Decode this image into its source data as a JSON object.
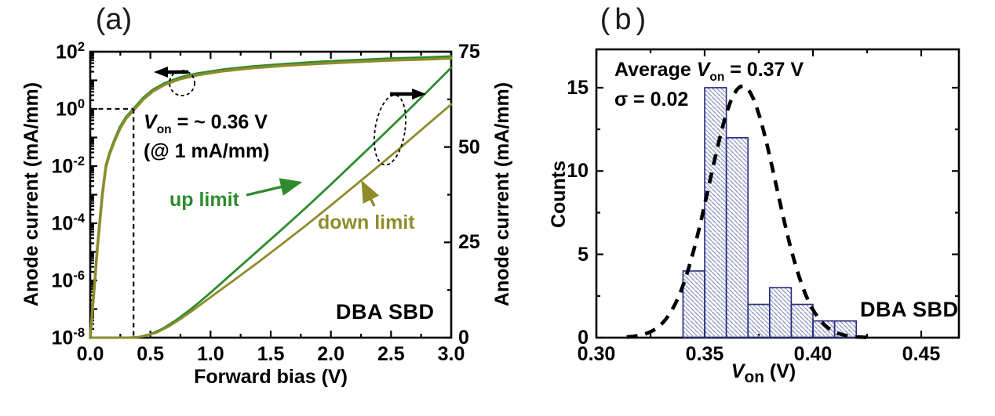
{
  "colors": {
    "green": "#2e8b2e",
    "olive": "#8f8c2b",
    "bar_edge": "#2a2a80",
    "bar_hatch": "#8890bf",
    "gauss": "#000000",
    "axis": "#000000"
  },
  "chart_data": [
    {
      "type": "line",
      "panel": "a",
      "title": "(a)",
      "xlabel": "Forward bias (V)",
      "ylabel_left": "Anode current (mA/mm)",
      "ylabel_right": "Anode current (mA/mm)",
      "x_range": [
        0.0,
        3.0
      ],
      "y_left_scale": "log",
      "y_left_range_log10": [
        -8,
        2
      ],
      "y_right_scale": "linear",
      "y_right_range": [
        0,
        75
      ],
      "x_ticks": [
        0.0,
        0.5,
        1.0,
        1.5,
        2.0,
        2.5,
        3.0
      ],
      "x_tick_labels": [
        "0.0",
        "0.5",
        "1.0",
        "1.5",
        "2.0",
        "2.5",
        "3.0"
      ],
      "x_minor_ticks": [
        0.25,
        0.75,
        1.25,
        1.75,
        2.25,
        2.75
      ],
      "y_left_ticks": [
        {
          "log10": 2,
          "base": "10",
          "exp": "2"
        },
        {
          "log10": 0,
          "base": "10",
          "exp": "0"
        },
        {
          "log10": -2,
          "base": "10",
          "exp": "-2"
        },
        {
          "log10": -4,
          "base": "10",
          "exp": "-4"
        },
        {
          "log10": -6,
          "base": "10",
          "exp": "-6"
        },
        {
          "log10": -8,
          "base": "10",
          "exp": "-8"
        }
      ],
      "y_left_unlabeled_decades": [
        1,
        -1,
        -3,
        -5,
        -7
      ],
      "y_right_ticks": [
        {
          "value": 75,
          "label": "75"
        },
        {
          "value": 50,
          "label": "50"
        },
        {
          "value": 25,
          "label": "25"
        },
        {
          "value": 0,
          "label": "0"
        }
      ],
      "y_right_minor_ticks": [
        12.5,
        37.5,
        62.5
      ],
      "series": [
        {
          "name": "up limit (log axis)",
          "color_key": "green",
          "axis": "log",
          "points_v_log10": [
            [
              0.0,
              -8
            ],
            [
              0.02,
              -6.9
            ],
            [
              0.04,
              -5.9
            ],
            [
              0.06,
              -4.8
            ],
            [
              0.08,
              -3.9
            ],
            [
              0.1,
              -3.0
            ],
            [
              0.13,
              -2.0
            ],
            [
              0.16,
              -1.55
            ],
            [
              0.2,
              -1.1
            ],
            [
              0.25,
              -0.62
            ],
            [
              0.3,
              -0.28
            ],
            [
              0.36,
              0.0
            ],
            [
              0.44,
              0.38
            ],
            [
              0.52,
              0.66
            ],
            [
              0.62,
              0.9
            ],
            [
              0.75,
              1.1
            ],
            [
              0.9,
              1.24
            ],
            [
              1.1,
              1.37
            ],
            [
              1.35,
              1.48
            ],
            [
              1.6,
              1.56
            ],
            [
              1.9,
              1.64
            ],
            [
              2.2,
              1.7
            ],
            [
              2.5,
              1.76
            ],
            [
              2.75,
              1.79
            ],
            [
              3.0,
              1.83
            ]
          ]
        },
        {
          "name": "down limit (log axis)",
          "color_key": "olive",
          "axis": "log",
          "points_v_log10": [
            [
              0.0,
              -8
            ],
            [
              0.02,
              -6.95
            ],
            [
              0.04,
              -5.95
            ],
            [
              0.06,
              -4.85
            ],
            [
              0.08,
              -3.95
            ],
            [
              0.1,
              -3.05
            ],
            [
              0.13,
              -2.05
            ],
            [
              0.16,
              -1.6
            ],
            [
              0.2,
              -1.15
            ],
            [
              0.25,
              -0.67
            ],
            [
              0.3,
              -0.33
            ],
            [
              0.36,
              -0.05
            ],
            [
              0.44,
              0.33
            ],
            [
              0.52,
              0.61
            ],
            [
              0.62,
              0.85
            ],
            [
              0.75,
              1.05
            ],
            [
              0.9,
              1.19
            ],
            [
              1.1,
              1.32
            ],
            [
              1.35,
              1.43
            ],
            [
              1.6,
              1.51
            ],
            [
              1.9,
              1.58
            ],
            [
              2.2,
              1.64
            ],
            [
              2.5,
              1.7
            ],
            [
              2.75,
              1.73
            ],
            [
              3.0,
              1.77
            ]
          ]
        },
        {
          "name": "up limit",
          "color_key": "green",
          "axis": "linear",
          "points_v_i": [
            [
              0.0,
              0
            ],
            [
              0.3,
              0
            ],
            [
              0.4,
              0.15
            ],
            [
              0.5,
              0.9
            ],
            [
              0.6,
              2.3
            ],
            [
              0.7,
              4.3
            ],
            [
              0.8,
              6.6
            ],
            [
              0.9,
              9.1
            ],
            [
              1.0,
              11.8
            ],
            [
              1.2,
              17.4
            ],
            [
              1.4,
              23.0
            ],
            [
              1.6,
              28.6
            ],
            [
              1.8,
              34.3
            ],
            [
              2.0,
              40.2
            ],
            [
              2.2,
              46.2
            ],
            [
              2.4,
              52.2
            ],
            [
              2.6,
              58.3
            ],
            [
              2.8,
              64.5
            ],
            [
              3.0,
              70.8
            ]
          ]
        },
        {
          "name": "down limit",
          "color_key": "olive",
          "axis": "linear",
          "points_v_i": [
            [
              0.0,
              0
            ],
            [
              0.35,
              0
            ],
            [
              0.45,
              0.4
            ],
            [
              0.55,
              1.3
            ],
            [
              0.65,
              2.9
            ],
            [
              0.75,
              4.9
            ],
            [
              0.85,
              7.1
            ],
            [
              1.0,
              10.6
            ],
            [
              1.2,
              15.2
            ],
            [
              1.4,
              19.9
            ],
            [
              1.6,
              24.7
            ],
            [
              1.8,
              29.6
            ],
            [
              2.0,
              34.7
            ],
            [
              2.2,
              39.9
            ],
            [
              2.4,
              45.1
            ],
            [
              2.6,
              50.4
            ],
            [
              2.8,
              55.8
            ],
            [
              3.0,
              61.2
            ]
          ]
        }
      ],
      "annotations": {
        "von": {
          "v": "V",
          "sub": "on",
          "rest": " = ~ 0.36 V"
        },
        "at_line": "(@ 1 mA/mm)",
        "legend_up": "up limit",
        "legend_down": "down limit",
        "device": "DBA SBD",
        "von_marker": {
          "v": 0.36,
          "log10_i": 0
        }
      }
    },
    {
      "type": "histogram",
      "panel": "b",
      "title": "(b)",
      "xlabel_pieces": {
        "v": "V",
        "sub": "on",
        "rest": " (V)"
      },
      "ylabel": "Counts",
      "x_range_shown": [
        0.3,
        0.467
      ],
      "y_range_shown": [
        0,
        17.3
      ],
      "x_ticks": [
        0.3,
        0.35,
        0.4,
        0.45
      ],
      "x_tick_labels": [
        "0.30",
        "0.35",
        "0.40",
        "0.45"
      ],
      "x_minor_ticks": [
        0.325,
        0.375,
        0.425
      ],
      "y_ticks": [
        0,
        5,
        10,
        15
      ],
      "y_tick_labels": [
        "0",
        "5",
        "10",
        "15"
      ],
      "y_minor_ticks": [
        2.5,
        7.5,
        12.5
      ],
      "bins": {
        "start": 0.34,
        "width": 0.01,
        "counts": [
          4,
          15,
          12,
          2,
          3,
          2,
          1,
          1
        ]
      },
      "gaussian_fit": {
        "mu": 0.3675,
        "sigma": 0.0155,
        "amplitude": 15.1,
        "x_start": 0.314,
        "x_end": 0.4262
      },
      "annotations": {
        "average": {
          "pre": "Average ",
          "v": "V",
          "sub": "on",
          "rest": " = 0.37 V"
        },
        "sigma": "σ = 0.02",
        "device": "DBA SBD"
      }
    }
  ]
}
